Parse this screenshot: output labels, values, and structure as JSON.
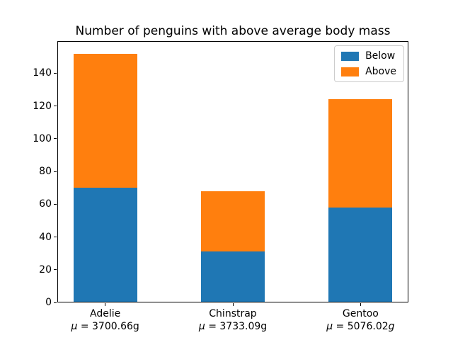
{
  "chart_data": {
    "type": "bar",
    "stacked": true,
    "title": "Number of penguins with above average body mass",
    "categories": [
      "Adelie",
      "Chinstrap",
      "Gentoo"
    ],
    "category_mean_labels": [
      "μ = 3700.66g",
      "μ = 3733.09g",
      "μ = 5076.02g"
    ],
    "mean_unit_italic": [
      false,
      false,
      true
    ],
    "series": [
      {
        "name": "Below",
        "color": "#1f77b4",
        "values": [
          70,
          31,
          58
        ]
      },
      {
        "name": "Above",
        "color": "#ff7f0e",
        "values": [
          82,
          37,
          66
        ]
      }
    ],
    "stack_totals": [
      152,
      68,
      124
    ],
    "yticks": [
      0,
      20,
      40,
      60,
      80,
      100,
      120,
      140
    ],
    "ylim": [
      0,
      159.6
    ],
    "xlim": [
      -0.375,
      2.375
    ],
    "bar_width": 0.5,
    "xlabel": "",
    "ylabel": "",
    "grid": false,
    "legend": {
      "location": "upper right",
      "labels": [
        "Below",
        "Above"
      ]
    },
    "colors": {
      "below": "#1f77b4",
      "above": "#ff7f0e",
      "spine": "#000000",
      "legend_border": "#cccccc"
    }
  }
}
